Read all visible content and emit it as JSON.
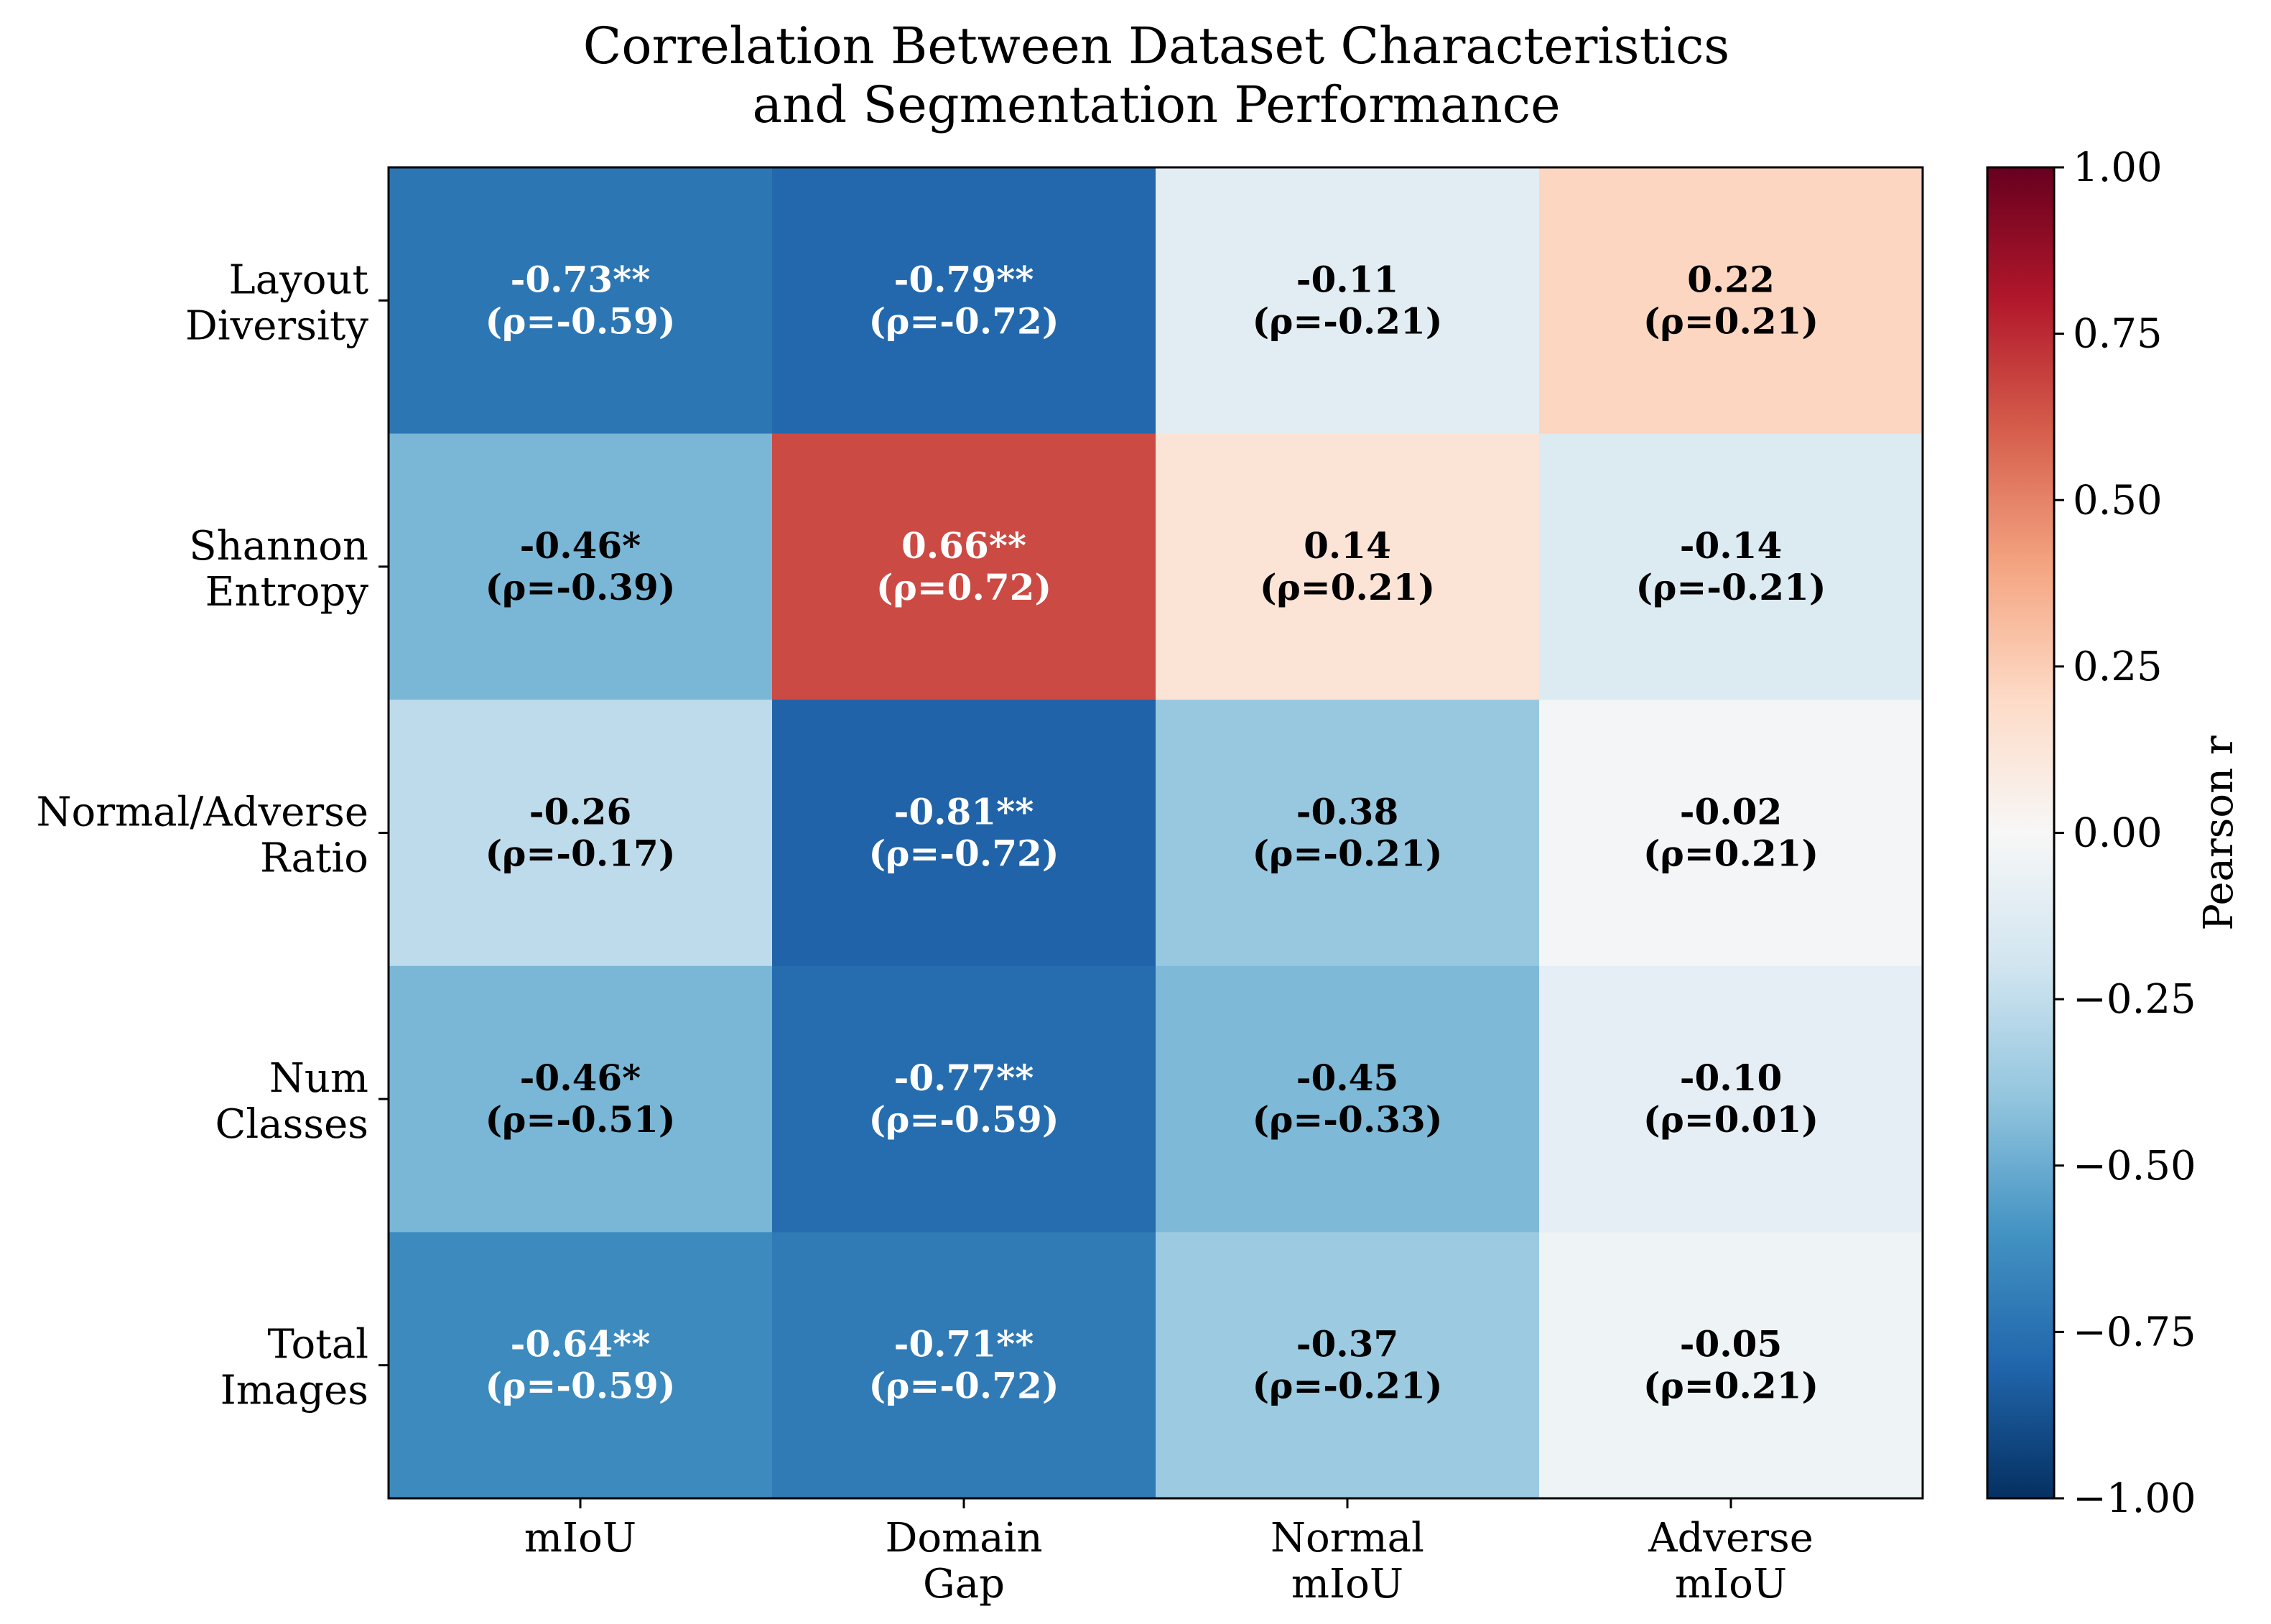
{
  "chart_data": {
    "type": "heatmap",
    "title": [
      "Correlation Between Dataset Characteristics",
      "and Segmentation Performance"
    ],
    "rows": [
      [
        "Layout",
        "Diversity"
      ],
      [
        "Shannon",
        "Entropy"
      ],
      [
        "Normal/Adverse",
        "Ratio"
      ],
      [
        "Num",
        "Classes"
      ],
      [
        "Total",
        "Images"
      ]
    ],
    "columns": [
      [
        "mIoU"
      ],
      [
        "Domain",
        "Gap"
      ],
      [
        "Normal",
        "mIoU"
      ],
      [
        "Adverse",
        "mIoU"
      ]
    ],
    "values": [
      [
        -0.73,
        -0.79,
        -0.11,
        0.22
      ],
      [
        -0.46,
        0.66,
        0.14,
        -0.14
      ],
      [
        -0.26,
        -0.81,
        -0.38,
        -0.02
      ],
      [
        -0.46,
        -0.77,
        -0.45,
        -0.1
      ],
      [
        -0.64,
        -0.71,
        -0.37,
        -0.05
      ]
    ],
    "annotations": [
      [
        [
          "-0.73**",
          "(ρ=-0.59)"
        ],
        [
          "-0.79**",
          "(ρ=-0.72)"
        ],
        [
          "-0.11",
          "(ρ=-0.21)"
        ],
        [
          "0.22",
          "(ρ=0.21)"
        ]
      ],
      [
        [
          "-0.46*",
          "(ρ=-0.39)"
        ],
        [
          "0.66**",
          "(ρ=0.72)"
        ],
        [
          "0.14",
          "(ρ=0.21)"
        ],
        [
          "-0.14",
          "(ρ=-0.21)"
        ]
      ],
      [
        [
          "-0.26",
          "(ρ=-0.17)"
        ],
        [
          "-0.81**",
          "(ρ=-0.72)"
        ],
        [
          "-0.38",
          "(ρ=-0.21)"
        ],
        [
          "-0.02",
          "(ρ=0.21)"
        ]
      ],
      [
        [
          "-0.46*",
          "(ρ=-0.51)"
        ],
        [
          "-0.77**",
          "(ρ=-0.59)"
        ],
        [
          "-0.45",
          "(ρ=-0.33)"
        ],
        [
          "-0.10",
          "(ρ=0.01)"
        ]
      ],
      [
        [
          "-0.64**",
          "(ρ=-0.59)"
        ],
        [
          "-0.71**",
          "(ρ=-0.72)"
        ],
        [
          "-0.37",
          "(ρ=-0.21)"
        ],
        [
          "-0.05",
          "(ρ=0.21)"
        ]
      ]
    ],
    "colormap": "RdBu_r",
    "vmin": -1.0,
    "vmax": 1.0,
    "colorbar_ticks": [
      "1.00",
      "0.75",
      "0.50",
      "0.25",
      "0.00",
      "−0.25",
      "−0.50",
      "−0.75",
      "−1.00"
    ],
    "colorbar_label": "Pearson r"
  }
}
